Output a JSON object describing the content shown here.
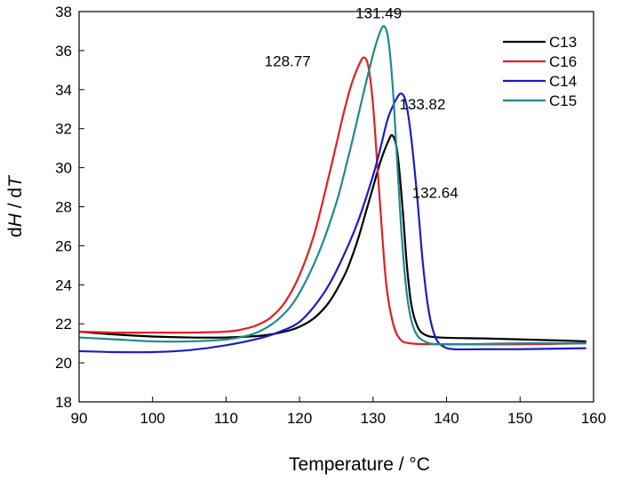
{
  "chart_data": {
    "type": "line",
    "xlabel": "Temperature / °C",
    "ylabel_parts": [
      "d",
      "H",
      " / d",
      "T"
    ],
    "xlim": [
      90,
      160
    ],
    "ylim": [
      18,
      38
    ],
    "xticks": [
      90,
      100,
      110,
      120,
      130,
      140,
      150,
      160
    ],
    "yticks": [
      18,
      20,
      22,
      24,
      26,
      28,
      30,
      32,
      34,
      36,
      38
    ],
    "grid": false,
    "legend_position": "top-right",
    "series": [
      {
        "name": "C13",
        "color": "#000000",
        "x": [
          90,
          95,
          100,
          105,
          110,
          115,
          118,
          120,
          122,
          124,
          126,
          127,
          128,
          129,
          130,
          131,
          132,
          132.64,
          133.3,
          134,
          134.6,
          135.2,
          136,
          137,
          139,
          145,
          150,
          155,
          159
        ],
        "y": [
          21.6,
          21.45,
          21.35,
          21.3,
          21.3,
          21.4,
          21.6,
          21.85,
          22.3,
          23.1,
          24.4,
          25.3,
          26.4,
          27.7,
          29.0,
          30.3,
          31.3,
          31.65,
          30.8,
          28.0,
          25.0,
          23.0,
          21.9,
          21.45,
          21.3,
          21.25,
          21.2,
          21.15,
          21.1
        ]
      },
      {
        "name": "C16",
        "color": "#e02020",
        "x": [
          90,
          95,
          100,
          105,
          110,
          112,
          114,
          116,
          118,
          120,
          122,
          124,
          125,
          126,
          127,
          128,
          128.77,
          129.4,
          130,
          130.6,
          131.2,
          131.8,
          132.6,
          133.5,
          135,
          140,
          150,
          159
        ],
        "y": [
          21.6,
          21.55,
          21.55,
          21.55,
          21.6,
          21.7,
          21.9,
          22.3,
          23.1,
          24.5,
          26.6,
          29.6,
          31.2,
          32.8,
          34.2,
          35.2,
          35.65,
          35.1,
          33.2,
          30.0,
          26.8,
          24.0,
          22.2,
          21.3,
          21.0,
          20.95,
          20.95,
          21.0
        ]
      },
      {
        "name": "C14",
        "color": "#1c1cc8",
        "x": [
          90,
          95,
          100,
          105,
          110,
          115,
          118,
          120,
          122,
          124,
          126,
          128,
          130,
          131,
          132,
          133,
          133.82,
          134.5,
          135.2,
          136,
          136.8,
          137.6,
          138.5,
          139.5,
          141,
          145,
          150,
          159
        ],
        "y": [
          20.6,
          20.55,
          20.55,
          20.65,
          20.9,
          21.3,
          21.7,
          22.1,
          22.9,
          24.0,
          25.5,
          27.3,
          29.6,
          31.0,
          32.5,
          33.4,
          33.8,
          33.3,
          31.5,
          28.5,
          25.0,
          22.6,
          21.3,
          20.85,
          20.7,
          20.7,
          20.7,
          20.75
        ]
      },
      {
        "name": "C15",
        "color": "#1f8a8a",
        "x": [
          90,
          95,
          100,
          105,
          110,
          113,
          115,
          117,
          119,
          121,
          123,
          125,
          126,
          127,
          128,
          129,
          130,
          130.8,
          131.49,
          132.1,
          132.7,
          133.3,
          133.9,
          134.6,
          135.5,
          137,
          140,
          150,
          159
        ],
        "y": [
          21.3,
          21.2,
          21.1,
          21.1,
          21.2,
          21.4,
          21.7,
          22.2,
          23.0,
          24.3,
          26.0,
          28.2,
          29.6,
          31.1,
          32.7,
          34.3,
          35.8,
          36.8,
          37.25,
          36.5,
          34.0,
          30.2,
          26.5,
          23.5,
          21.8,
          21.1,
          20.95,
          21.0,
          21.0
        ]
      }
    ],
    "annotations": [
      {
        "text": "131.49",
        "series": "C15",
        "x": 131.49,
        "y": 37.25
      },
      {
        "text": "128.77",
        "series": "C16",
        "x": 128.77,
        "y": 35.65
      },
      {
        "text": "133.82",
        "series": "C14",
        "x": 133.82,
        "y": 33.8
      },
      {
        "text": "132.64",
        "series": "C13",
        "x": 132.64,
        "y": 31.65
      }
    ]
  }
}
